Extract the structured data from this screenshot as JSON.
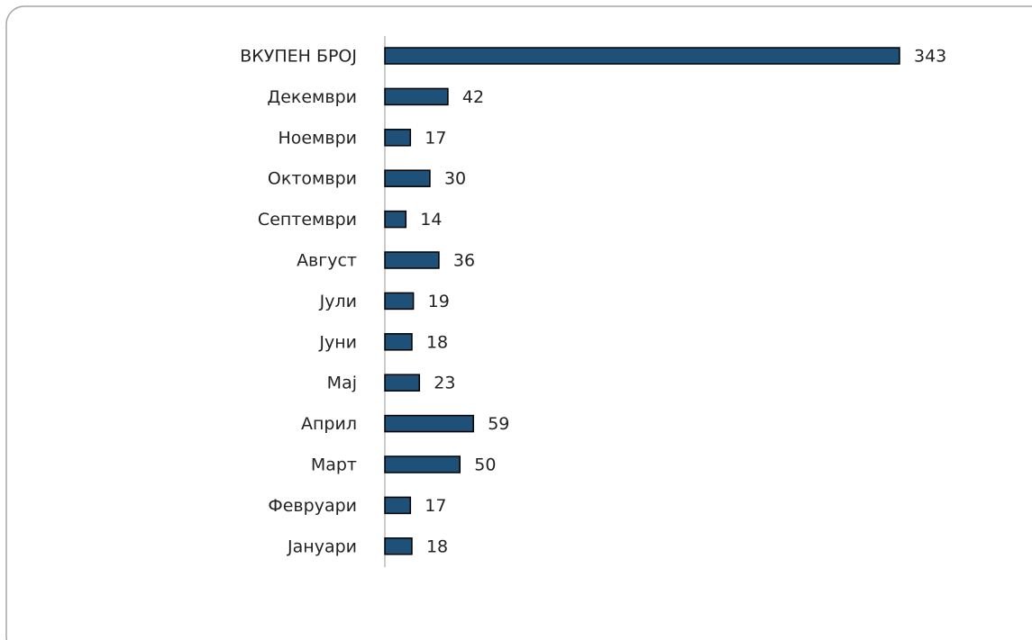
{
  "chart_data": {
    "type": "barh",
    "categories": [
      "ВКУПЕН БРОЈ",
      "Декември",
      "Ноември",
      "Октомври",
      "Септември",
      "Август",
      "Јули",
      "Јуни",
      "Мај",
      "Април",
      "Март",
      "Февруари",
      "Јануари"
    ],
    "values": [
      343,
      42,
      17,
      30,
      14,
      36,
      19,
      18,
      23,
      59,
      50,
      17,
      18
    ],
    "color": "#1f5078",
    "data_labels": true
  }
}
